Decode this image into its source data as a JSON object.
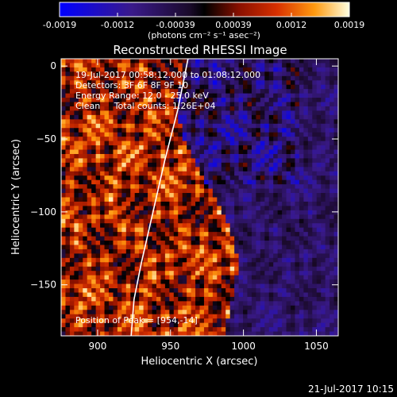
{
  "chart_data": {
    "type": "heatmap",
    "title": "Reconstructed RHESSI Image",
    "xlabel": "Heliocentric X (arcsec)",
    "ylabel": "Heliocentric Y (arcsec)",
    "xlim": [
      875,
      1065
    ],
    "ylim": [
      -185,
      5
    ],
    "x_ticks": [
      900,
      950,
      1000,
      1050
    ],
    "y_ticks": [
      0,
      -50,
      -100,
      -150
    ],
    "grid": false,
    "colorbar": {
      "ticks": [
        "-0.0019",
        "-0.0012",
        "-0.00039",
        "0.00039",
        "0.0012",
        "0.0019"
      ],
      "range": [
        -0.0019,
        0.0019
      ],
      "units": "(photons cm⁻² s⁻¹ asec⁻²)"
    },
    "annotations": [
      "19-Jul-2017 00:58:12.000 to 01:08:12.000",
      "Detectors: 3F 6F 8F 9F 10",
      "Energy Range: 12.0 - 25.0 keV",
      "Clean     Total counts: 1.26E+04"
    ],
    "peak_label": "Position of Peak = [954,-14]",
    "limb_curve": [
      [
        962,
        5
      ],
      [
        955,
        -30
      ],
      [
        946,
        -65
      ],
      [
        938,
        -100
      ],
      [
        930,
        -135
      ],
      [
        925,
        -160
      ],
      [
        923,
        -185
      ]
    ]
  },
  "footer": {
    "timestamp": "21-Jul-2017 10:15"
  }
}
